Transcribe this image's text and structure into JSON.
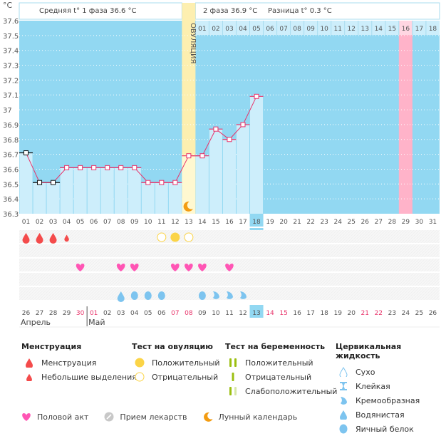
{
  "header": {
    "phase1_label": "Средняя t° 1 фаза 36.6 °C",
    "phase2_label": "2 фаза 36.9 °C",
    "difference_label": "Разница t° 0.3 °C",
    "ovulation_label": "ОВУЛЯЦИЯ"
  },
  "colors": {
    "chart_bg": "#92d8f2",
    "bar_fill": "#cdeefb",
    "line": "#e8336a",
    "ovulation_band": "#fdefb0",
    "highlight_day": "#ffb3c9",
    "today": "#92d8f2",
    "weekend": "#e8336a",
    "menstruation": "#f44b4b",
    "ovulation_test": "#fbd447",
    "intercourse": "#ff55b4",
    "cervical": "#7dc4ef",
    "moon": "#f39c12",
    "pregnancy_test": "#9cbf11"
  },
  "chart_data": {
    "type": "line",
    "title": "",
    "ylabel": "°C",
    "xlabel": "",
    "ylim": [
      36.3,
      37.6
    ],
    "yticks": [
      "37.6",
      "37.5",
      "37.4",
      "37.3",
      "37.2",
      "37.1",
      "37",
      "36.9",
      "36.8",
      "36.7",
      "36.6",
      "36.5",
      "36.4",
      "36.3"
    ],
    "grid": true,
    "cycle_days": [
      "01",
      "02",
      "03",
      "04",
      "05",
      "06",
      "07",
      "08",
      "09",
      "10",
      "11",
      "12",
      "13",
      "14",
      "15",
      "16",
      "17",
      "18",
      "19",
      "20",
      "21",
      "22",
      "23",
      "24",
      "25",
      "26",
      "27",
      "28",
      "29",
      "30",
      "31"
    ],
    "phase2_days": [
      "01",
      "02",
      "03",
      "04",
      "05",
      "06",
      "07",
      "08",
      "09",
      "10",
      "11",
      "12",
      "13",
      "14",
      "15",
      "16",
      "17",
      "18"
    ],
    "temperatures": [
      36.71,
      36.51,
      36.51,
      36.61,
      36.61,
      36.61,
      36.61,
      36.61,
      36.61,
      36.51,
      36.51,
      36.51,
      36.69,
      36.69,
      36.87,
      36.8,
      36.9,
      37.09
    ],
    "excluded_days": [
      1,
      2,
      3
    ],
    "ovulation_day": 13,
    "current_day": 18,
    "highlight_day": 29,
    "moon_day": 13,
    "calendar_dates": [
      "26",
      "27",
      "28",
      "29",
      "30",
      "01",
      "02",
      "03",
      "04",
      "05",
      "06",
      "07",
      "08",
      "09",
      "10",
      "11",
      "12",
      "13",
      "14",
      "15",
      "16",
      "17",
      "18",
      "19",
      "20",
      "21",
      "22",
      "23",
      "24",
      "25",
      "26"
    ],
    "calendar_weekend_idx": [
      4,
      5,
      11,
      12,
      18,
      19,
      25,
      26
    ],
    "calendar_today_idx": 17,
    "month_labels": [
      {
        "label": "Апрель",
        "start_idx": 0
      },
      {
        "label": "Май",
        "start_idx": 5
      }
    ],
    "events": {
      "menstruation": [
        {
          "day": 1,
          "type": "heavy"
        },
        {
          "day": 2,
          "type": "heavy"
        },
        {
          "day": 3,
          "type": "heavy"
        },
        {
          "day": 4,
          "type": "light"
        }
      ],
      "ovulation_test": [
        {
          "day": 11,
          "type": "negative"
        },
        {
          "day": 12,
          "type": "positive"
        },
        {
          "day": 13,
          "type": "negative"
        }
      ],
      "intercourse": [
        5,
        8,
        9,
        12,
        13,
        14,
        16
      ],
      "cervical_fluid": [
        {
          "day": 8,
          "type": "watery"
        },
        {
          "day": 9,
          "type": "egg-white"
        },
        {
          "day": 10,
          "type": "egg-white"
        },
        {
          "day": 11,
          "type": "egg-white"
        },
        {
          "day": 14,
          "type": "egg-white"
        },
        {
          "day": 15,
          "type": "creamy"
        },
        {
          "day": 16,
          "type": "creamy"
        },
        {
          "day": 17,
          "type": "creamy"
        }
      ]
    }
  },
  "legend": {
    "menstruation": {
      "title": "Менструация",
      "items": [
        "Менструация",
        "Небольшие выделения"
      ]
    },
    "ovulation_test": {
      "title": "Тест на овуляцию",
      "items": [
        "Положительный",
        "Отрицательный"
      ]
    },
    "pregnancy_test": {
      "title": "Тест на беременность",
      "items": [
        "Положительный",
        "Отрицательный",
        "Слабоположительный"
      ]
    },
    "cervical": {
      "title": "Цервикальная жидкость",
      "items": [
        "Сухо",
        "Клейкая",
        "Кремообразная",
        "Водянистая",
        "Яичный белок"
      ]
    },
    "bottom": [
      "Половой акт",
      "Прием лекарств",
      "Лунный календарь"
    ]
  }
}
